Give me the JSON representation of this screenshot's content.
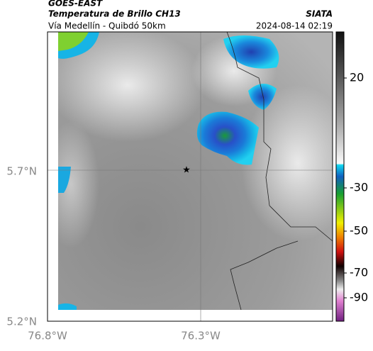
{
  "header": {
    "satellite": "GOES-EAST",
    "title": "Temperatura de Brillo CH13",
    "route": "Vía Medellín - Quibdó 50km",
    "source": "SIATA",
    "datetime": "2024-08-14 02:19"
  },
  "axes": {
    "lat_labels": [
      "5.7°N",
      "5.2°N"
    ],
    "lon_labels": [
      "76.8°W",
      "76.3°W"
    ]
  },
  "colorbar": {
    "ticks": [
      20,
      -30,
      -50,
      -70,
      -90
    ]
  }
}
